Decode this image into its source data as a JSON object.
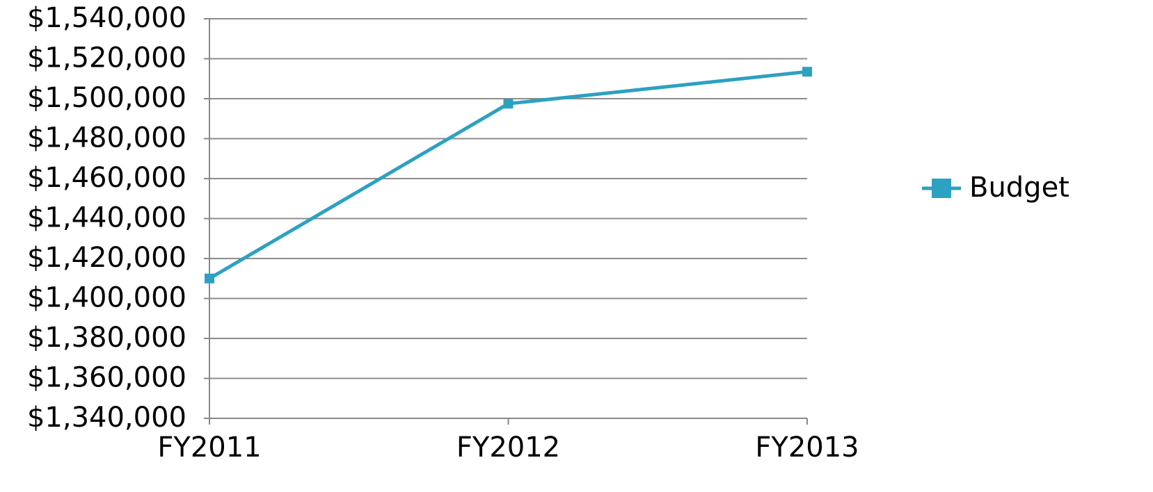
{
  "chart_data": {
    "type": "line",
    "categories": [
      "FY2011",
      "FY2012",
      "FY2013"
    ],
    "series": [
      {
        "name": "Budget",
        "color": "#2ca1c1",
        "values": [
          1410000,
          1497500,
          1513500
        ]
      }
    ],
    "ylim": [
      1340000,
      1540000
    ],
    "yticks": [
      {
        "value": 1340000,
        "label": "$1,340,000"
      },
      {
        "value": 1360000,
        "label": "$1,360,000"
      },
      {
        "value": 1380000,
        "label": "$1,380,000"
      },
      {
        "value": 1400000,
        "label": "$1,400,000"
      },
      {
        "value": 1420000,
        "label": "$1,420,000"
      },
      {
        "value": 1440000,
        "label": "$1,440,000"
      },
      {
        "value": 1460000,
        "label": "$1,460,000"
      },
      {
        "value": 1480000,
        "label": "$1,480,000"
      },
      {
        "value": 1500000,
        "label": "$1,500,000"
      },
      {
        "value": 1520000,
        "label": "$1,520,000"
      },
      {
        "value": 1540000,
        "label": "$1,540,000"
      }
    ],
    "grid": true,
    "legend": "right"
  }
}
